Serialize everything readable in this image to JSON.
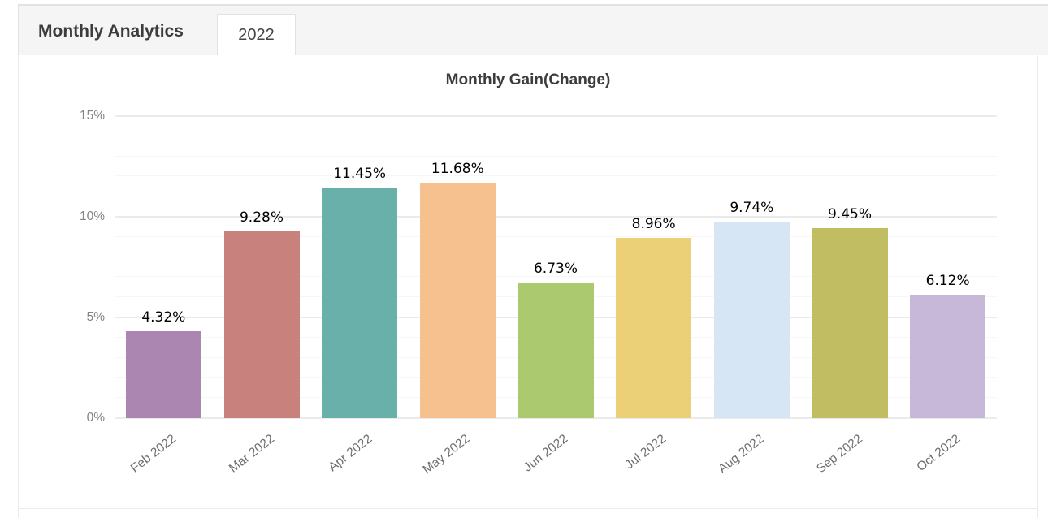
{
  "header": {
    "title": "Monthly Analytics",
    "active_tab": "2022"
  },
  "chart_data": {
    "type": "bar",
    "title": "Monthly Gain(Change)",
    "categories": [
      "Feb 2022",
      "Mar 2022",
      "Apr 2022",
      "May 2022",
      "Jun 2022",
      "Jul 2022",
      "Aug 2022",
      "Sep 2022",
      "Oct 2022"
    ],
    "values": [
      4.32,
      9.28,
      11.45,
      11.68,
      6.73,
      8.96,
      9.74,
      9.45,
      6.12
    ],
    "value_labels": [
      "4.32%",
      "9.28%",
      "11.45%",
      "11.68%",
      "6.73%",
      "8.96%",
      "9.74%",
      "9.45%",
      "6.12%"
    ],
    "bar_colors": [
      "#ab86b0",
      "#c9817d",
      "#69b0ab",
      "#f6c18f",
      "#abca6f",
      "#ebd077",
      "#d7e6f4",
      "#c0bd62",
      "#c7b8d9"
    ],
    "yticks": {
      "labels": [
        "0%",
        "5%",
        "10%",
        "15%"
      ],
      "values": [
        0,
        5,
        10,
        15
      ]
    },
    "ylim": [
      0,
      15
    ],
    "minor_step": 1,
    "grid": true,
    "legend": "none"
  },
  "colors": {
    "tabbar_bg": "#f5f5f6",
    "border": "#e2e2e2",
    "card_border": "#ececec",
    "grid_major": "#ebebeb",
    "grid_minor": "#f7f7f7",
    "axis_tick": "#838383",
    "axis_label": "#6e6e6e",
    "title": "#3c3c3c",
    "data_label": "#000000"
  }
}
